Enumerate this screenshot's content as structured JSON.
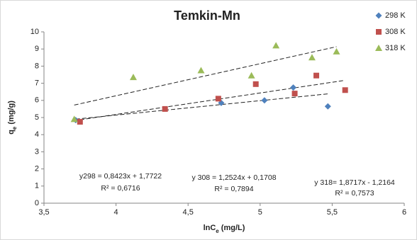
{
  "chart_data": {
    "type": "scatter",
    "title": "Temkin-Mn",
    "x_label": {
      "main": "lnC",
      "sub": "e",
      "rest": " (mg/L)"
    },
    "y_label": {
      "main": "q",
      "sub": "e",
      "rest": " (mg/g)"
    },
    "xlim": [
      3.5,
      6
    ],
    "ylim": [
      0,
      10
    ],
    "xticks": [
      {
        "value": 3.5,
        "label": "3,5"
      },
      4,
      {
        "value": 4.5,
        "label": "4,5"
      },
      5,
      {
        "value": 5.5,
        "label": "5,5"
      },
      6
    ],
    "yticks": [
      0,
      1,
      2,
      3,
      4,
      5,
      6,
      7,
      8,
      9,
      10
    ],
    "legend": "top-right",
    "series": [
      {
        "name": "298 K",
        "color": "#4f81bd",
        "marker": "diamond",
        "x": [
          3.72,
          4.73,
          5.03,
          5.23,
          5.47
        ],
        "values": [
          4.85,
          5.85,
          6.0,
          6.75,
          5.65
        ],
        "trendline": {
          "slope": 0.8423,
          "intercept": 1.7722,
          "label": "y298 = 0,8423x + 1,7722",
          "r2_label": "R² = 0,6716"
        }
      },
      {
        "name": "308 K",
        "color": "#c0504d",
        "marker": "square",
        "x": [
          3.75,
          4.34,
          4.71,
          4.97,
          5.24,
          5.39,
          5.59
        ],
        "values": [
          4.75,
          5.5,
          6.1,
          6.95,
          6.4,
          7.45,
          6.6
        ],
        "trendline": {
          "slope": 1.2524,
          "intercept": 0.1708,
          "label": "y 308 = 1,2524x + 0,1708",
          "r2_label": "R² = 0,7894"
        }
      },
      {
        "name": "318 K",
        "color": "#9bbb59",
        "marker": "triangle",
        "x": [
          3.71,
          4.12,
          4.59,
          4.94,
          5.11,
          5.36,
          5.53
        ],
        "values": [
          4.9,
          7.35,
          7.75,
          7.45,
          9.2,
          8.5,
          8.85
        ],
        "trendline": {
          "slope": 1.8717,
          "intercept": -1.2164,
          "label": "y 318= 1,8717x - 1,2164",
          "r2_label": "R² = 0,7573"
        }
      }
    ]
  }
}
